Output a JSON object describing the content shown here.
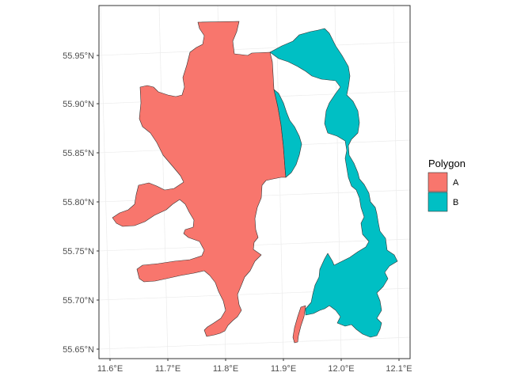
{
  "map": {
    "y_axis": {
      "tick_labels": [
        "55.95°N",
        "55.90°N",
        "55.85°N",
        "55.80°N",
        "55.75°N",
        "55.70°N",
        "55.65°N"
      ]
    },
    "x_axis": {
      "tick_labels": [
        "11.6°E",
        "11.7°E",
        "11.8°E",
        "11.9°E",
        "12.0°E",
        "12.1°E"
      ]
    },
    "legend": {
      "title": "Polygon",
      "placement": "right",
      "items": [
        {
          "label": "A",
          "color": "#F8766D"
        },
        {
          "label": "B",
          "color": "#00BFC4"
        }
      ]
    },
    "colors": {
      "A": "#F8766D",
      "B": "#00BFC4",
      "grid": "#ebebeb",
      "border": "#333333"
    }
  }
}
